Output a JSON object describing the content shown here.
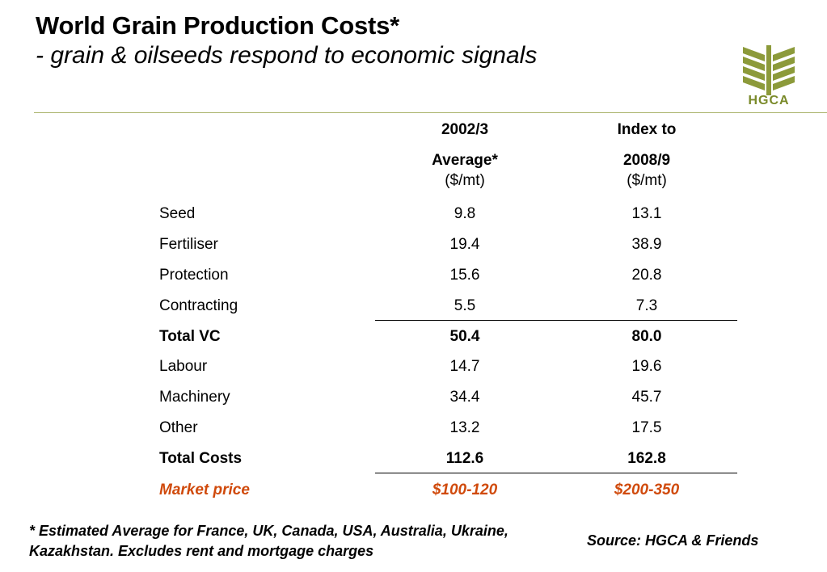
{
  "slide": {
    "title": "World Grain Production Costs*",
    "subtitle": "- grain & oilseeds respond to economic signals"
  },
  "logo": {
    "text": "HGCA",
    "color": "#7a8a2a"
  },
  "table": {
    "columns": [
      {
        "line1": "2002/3",
        "line2": "Average*",
        "unit": "($/mt)"
      },
      {
        "line1": "Index to",
        "line2": "2008/9",
        "unit": "($/mt)"
      }
    ],
    "rows": [
      {
        "label": "Seed",
        "v1": "9.8",
        "v2": "13.1"
      },
      {
        "label": "Fertiliser",
        "v1": "19.4",
        "v2": "38.9"
      },
      {
        "label": "Protection",
        "v1": "15.6",
        "v2": "20.8"
      },
      {
        "label": "Contracting",
        "v1": "5.5",
        "v2": "7.3"
      },
      {
        "label": "Total VC",
        "v1": "50.4",
        "v2": "80.0"
      },
      {
        "label": "Labour",
        "v1": "14.7",
        "v2": "19.6"
      },
      {
        "label": "Machinery",
        "v1": "34.4",
        "v2": "45.7"
      },
      {
        "label": "Other",
        "v1": "13.2",
        "v2": "17.5"
      },
      {
        "label": "Total Costs",
        "v1": "112.6",
        "v2": "162.8"
      },
      {
        "label": "Market price",
        "v1": "$100-120",
        "v2": "$200-350"
      }
    ],
    "market_color": "#d04a0c"
  },
  "footnote": "* Estimated Average for France, UK, Canada, USA, Australia, Ukraine, Kazakhstan. Excludes rent and mortgage charges",
  "source": "Source: HGCA & Friends"
}
